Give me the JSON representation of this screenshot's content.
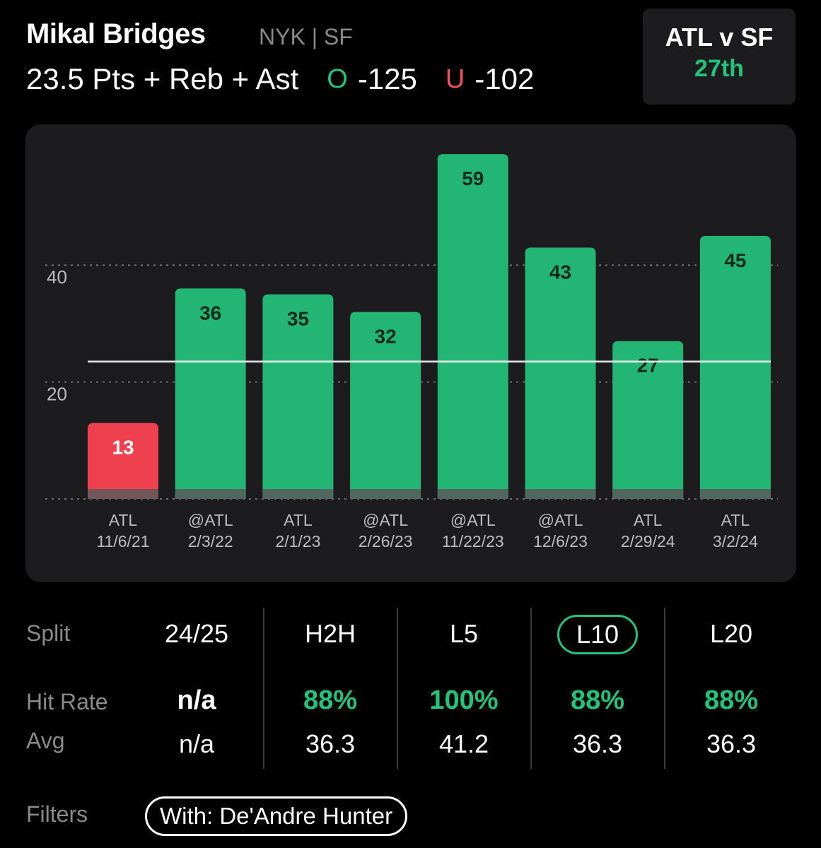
{
  "header": {
    "player_name": "Mikal Bridges",
    "team_label": "NYK | SF",
    "prop_line": "23.5 Pts + Reb + Ast",
    "over_symbol": "O",
    "over_odds": "-125",
    "under_symbol": "U",
    "under_odds": "-102"
  },
  "matchup": {
    "title": "ATL v SF",
    "rank": "27th"
  },
  "chart_data": {
    "type": "bar",
    "categories": [
      "ATL 11/6/21",
      "@ATL 2/3/22",
      "ATL 2/1/23",
      "@ATL 2/26/23",
      "@ATL 11/22/23",
      "@ATL 12/6/23",
      "ATL 2/29/24",
      "ATL 3/2/24"
    ],
    "category_lines": [
      [
        "ATL",
        "11/6/21"
      ],
      [
        "@ATL",
        "2/3/22"
      ],
      [
        "ATL",
        "2/1/23"
      ],
      [
        "@ATL",
        "2/26/23"
      ],
      [
        "@ATL",
        "11/22/23"
      ],
      [
        "@ATL",
        "12/6/23"
      ],
      [
        "ATL",
        "2/29/24"
      ],
      [
        "ATL",
        "3/2/24"
      ]
    ],
    "values": [
      13,
      36,
      35,
      32,
      59,
      43,
      27,
      45
    ],
    "line_value": 23.5,
    "yticks": [
      20,
      40
    ],
    "ylim": [
      0,
      60
    ],
    "grid": "dotted",
    "colors": {
      "over": "#22b573",
      "under": "#ef4050",
      "line": "#ffffff",
      "base": "#5a5a5c"
    }
  },
  "stats": {
    "row_labels": {
      "split": "Split",
      "hit_rate": "Hit Rate",
      "avg": "Avg"
    },
    "columns": [
      {
        "split": "24/25",
        "hit_rate": "n/a",
        "avg": "n/a"
      },
      {
        "split": "H2H",
        "hit_rate": "88%",
        "avg": "36.3"
      },
      {
        "split": "L5",
        "hit_rate": "100%",
        "avg": "41.2"
      },
      {
        "split": "L10",
        "hit_rate": "88%",
        "avg": "36.3",
        "selected": true
      },
      {
        "split": "L20",
        "hit_rate": "88%",
        "avg": "36.3"
      }
    ]
  },
  "filters": {
    "label": "Filters",
    "chip": "With: De'Andre Hunter"
  },
  "colors": {
    "accent": "#22c47d",
    "under": "#f0505f",
    "card": "#1c1c1e"
  }
}
